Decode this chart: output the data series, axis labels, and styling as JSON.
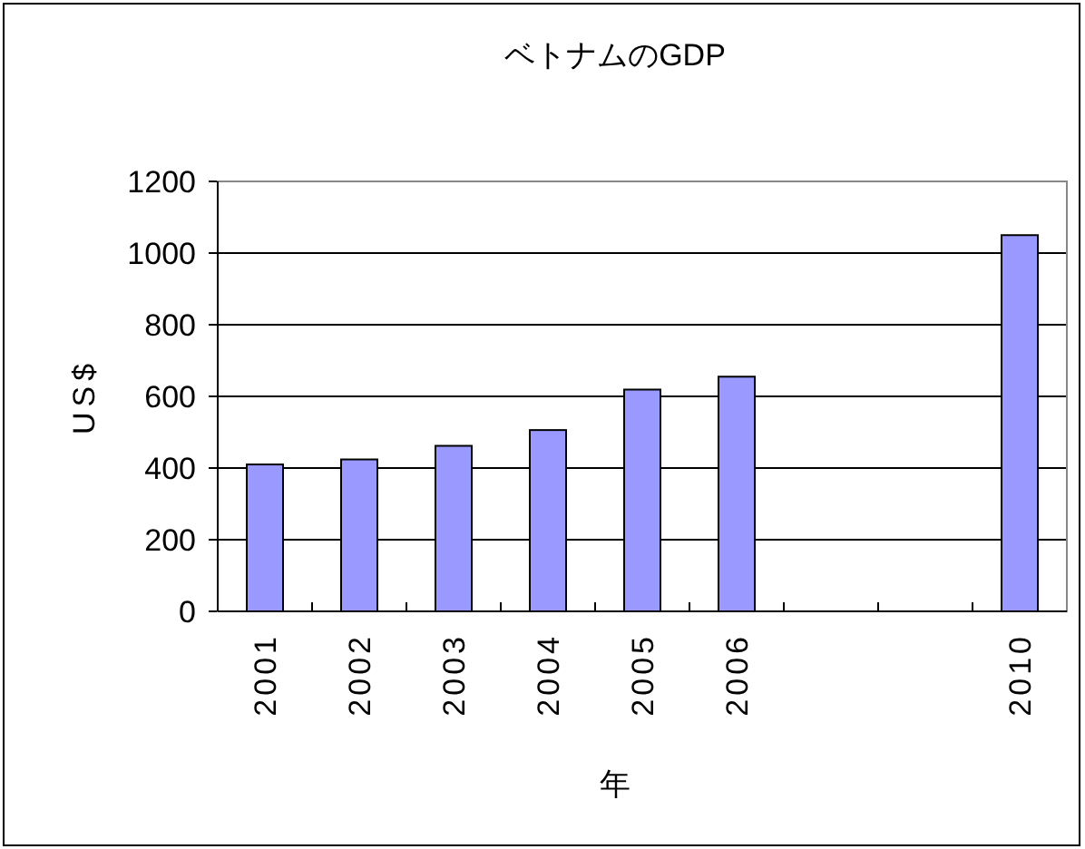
{
  "chart_data": {
    "type": "bar",
    "title": "ベトナムのGDP",
    "xlabel": "年",
    "ylabel": "US$",
    "categories": [
      "2001",
      "2002",
      "2003",
      "2004",
      "2005",
      "2006",
      null,
      null,
      "2010"
    ],
    "values": [
      410,
      424,
      462,
      506,
      619,
      655,
      null,
      null,
      1050
    ],
    "color": "#9999ff",
    "ylim": [
      0,
      1200
    ],
    "yticks": [
      0,
      200,
      400,
      600,
      800,
      1000,
      1200
    ],
    "grid": "y"
  }
}
